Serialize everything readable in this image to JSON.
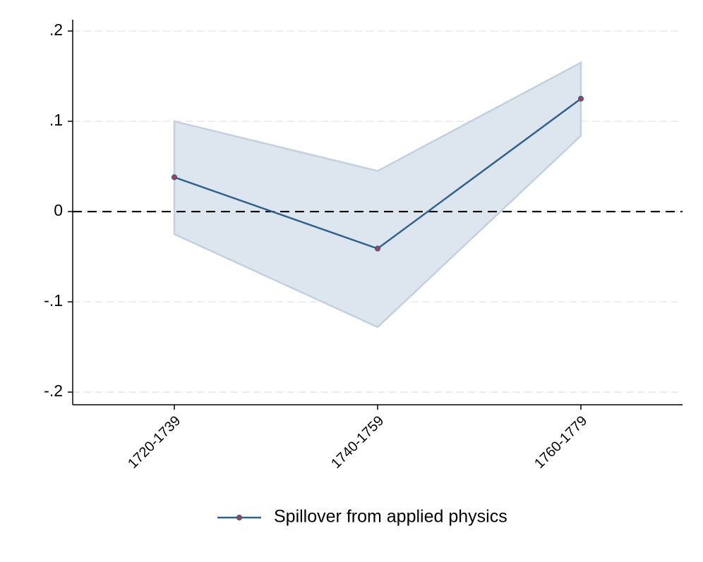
{
  "chart_data": {
    "type": "line",
    "categories": [
      "1720-1739",
      "1740-1759",
      "1760-1779"
    ],
    "series": [
      {
        "name": "Spillover from applied physics",
        "color": "#2d6291",
        "marker_color": "#b03a4e",
        "values": [
          0.038,
          -0.041,
          0.125
        ],
        "ci_lower": [
          -0.025,
          -0.128,
          0.084
        ],
        "ci_upper": [
          0.1,
          0.045,
          0.165
        ],
        "ci_color": "#dde5ee"
      }
    ],
    "ylim": [
      -0.214,
      0.2125
    ],
    "yticks": [
      {
        "value": -0.2,
        "label": "-.2"
      },
      {
        "value": -0.1,
        "label": "-.1"
      },
      0,
      {
        "value": 0.1,
        "label": ".1"
      },
      {
        "value": 0.2,
        "label": ".2"
      }
    ],
    "grid": true,
    "reference_line": 0,
    "legend": "bottom"
  }
}
